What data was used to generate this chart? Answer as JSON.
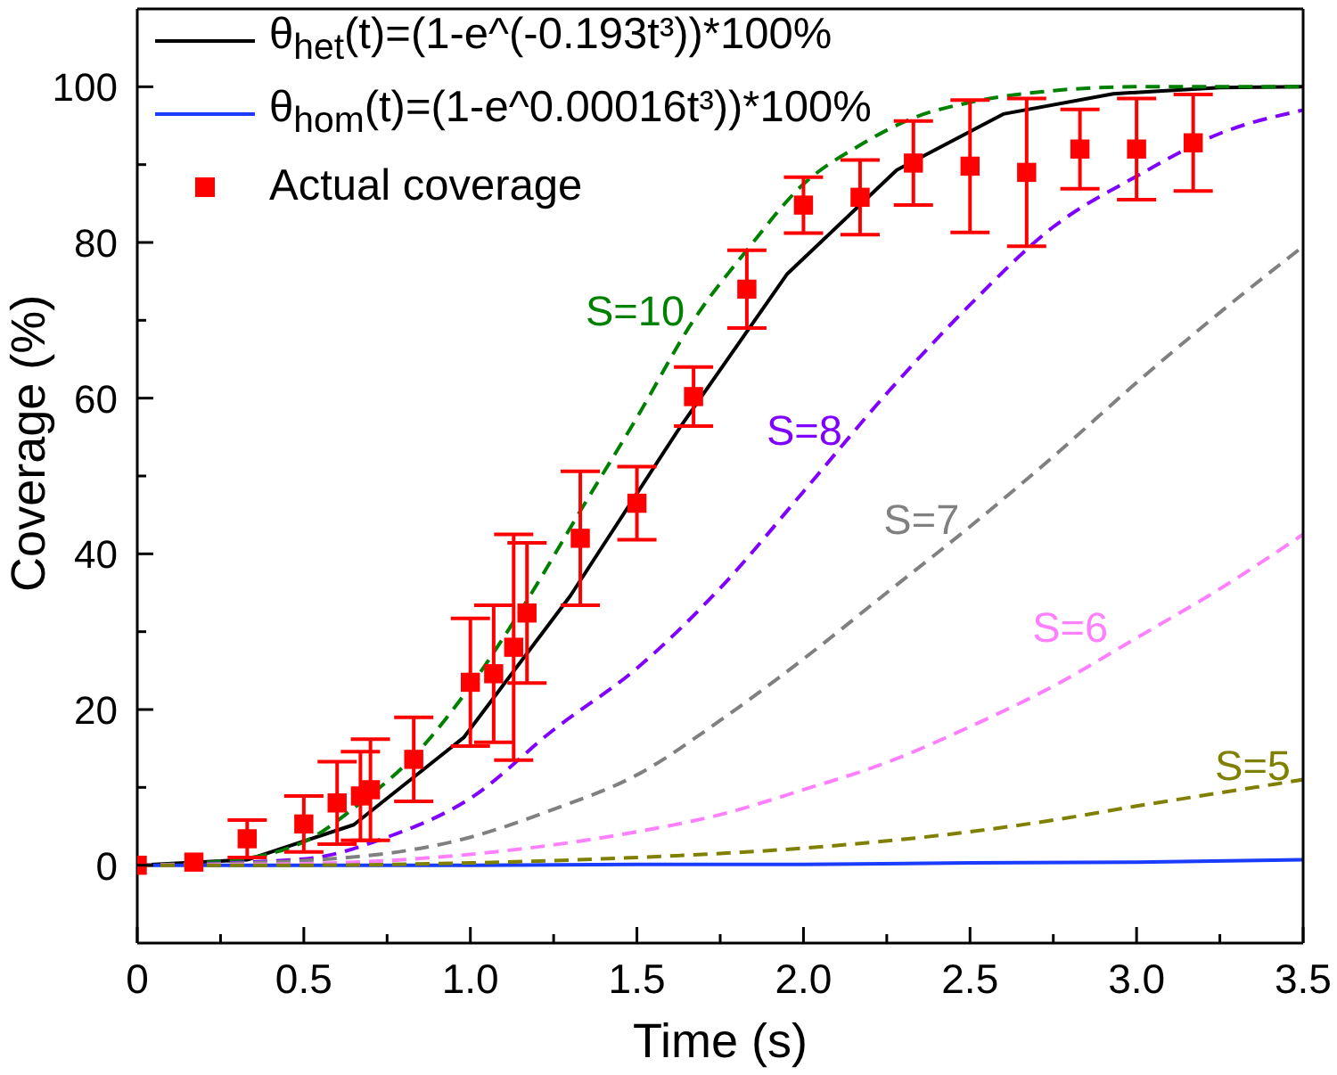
{
  "chart_data": {
    "type": "line",
    "xlabel": "Time (s)",
    "ylabel": "Coverage (%)",
    "xlim": [
      0,
      3.5
    ],
    "ylim": [
      -10,
      110
    ],
    "xticks": [
      0,
      {
        "value": 0.25,
        "label": null
      },
      0.5,
      {
        "value": 0.75,
        "label": null
      },
      {
        "value": 1,
        "label": "1.0"
      },
      {
        "value": 1.25,
        "label": null
      },
      1.5,
      {
        "value": 1.75,
        "label": null
      },
      {
        "value": 2,
        "label": "2.0"
      },
      {
        "value": 2.25,
        "label": null
      },
      2.5,
      {
        "value": 2.75,
        "label": null
      },
      {
        "value": 3,
        "label": "3.0"
      },
      {
        "value": 3.25,
        "label": null
      },
      3.5
    ],
    "yticks": [
      0,
      {
        "value": 10,
        "label": null
      },
      20,
      {
        "value": 30,
        "label": null
      },
      40,
      {
        "value": 50,
        "label": null
      },
      60,
      {
        "value": 70,
        "label": null
      },
      80,
      {
        "value": 90,
        "label": null
      },
      100
    ],
    "legend": "top left",
    "series": [
      {
        "name": "θ$_{het}$(t)=(1-e^(-0.193t³))*100%",
        "color": "#000000",
        "line_style": "solid",
        "x": [
          0,
          0.33,
          0.65,
          0.98,
          1.3,
          1.63,
          1.95,
          2.28,
          2.6,
          2.93,
          3.25,
          3.5
        ],
        "values": [
          0,
          0.7,
          5.2,
          16.4,
          34.6,
          56.3,
          75.9,
          89.3,
          96.5,
          99.1,
          99.9,
          100
        ]
      },
      {
        "name": "θ$_{hom}$(t)=(1-e^0.00016t³))*100%",
        "color": "#1a3cff",
        "line_style": "solid",
        "x": [
          0,
          0.5,
          1,
          1.5,
          2,
          2.5,
          3,
          3.5
        ],
        "values": [
          0,
          0,
          0,
          0.1,
          0.1,
          0.3,
          0.4,
          0.7
        ]
      },
      {
        "name": "S=10",
        "color": "#008000",
        "line_style": "dashed",
        "x": [
          0,
          0.25,
          0.5,
          0.67,
          0.83,
          1,
          1.17,
          1.33,
          1.5,
          1.67,
          1.83,
          2,
          2.17,
          2.33,
          2.5,
          2.75,
          3,
          3.25,
          3.5
        ],
        "values": [
          0,
          0.5,
          3,
          8,
          14,
          23,
          34,
          45.5,
          57.5,
          70,
          79,
          87.5,
          92.5,
          96,
          98,
          99.5,
          100,
          100,
          100
        ]
      },
      {
        "name": "S=8",
        "color": "#8000ff",
        "line_style": "dashed",
        "x": [
          0,
          0.5,
          0.75,
          1,
          1.25,
          1.5,
          1.75,
          2,
          2.25,
          2.5,
          2.75,
          3,
          3.25,
          3.5
        ],
        "values": [
          0,
          0.8,
          3.6,
          8.6,
          17.4,
          25.3,
          35.6,
          48,
          60.6,
          72,
          82,
          88.5,
          94,
          97
        ]
      },
      {
        "name": "S=7",
        "color": "#808080",
        "line_style": "dashed",
        "x": [
          0,
          0.5,
          1,
          1.25,
          1.5,
          1.75,
          2,
          2.25,
          2.5,
          2.75,
          3,
          3.25,
          3.5
        ],
        "values": [
          0,
          0.6,
          3.6,
          7.2,
          11.6,
          18.6,
          26.5,
          35,
          43.5,
          52.5,
          62,
          71,
          79.5
        ]
      },
      {
        "name": "S=6",
        "color": "#ff80ff",
        "line_style": "dashed",
        "x": [
          0,
          0.5,
          1,
          1.5,
          1.75,
          2,
          2.25,
          2.5,
          2.75,
          3,
          3.25,
          3.5
        ],
        "values": [
          0,
          0.2,
          1.4,
          4.3,
          6.5,
          9.7,
          13.2,
          17.8,
          23,
          29.2,
          35.5,
          42.5
        ]
      },
      {
        "name": "S=5",
        "color": "#808000",
        "line_style": "dashed",
        "x": [
          0,
          0.5,
          1,
          1.5,
          2,
          2.5,
          2.75,
          3,
          3.25,
          3.5
        ],
        "values": [
          0,
          0,
          0.3,
          1,
          2.2,
          4.3,
          5.8,
          7.6,
          9.3,
          11
        ]
      },
      {
        "type": "scatter",
        "name": "Actual coverage",
        "color": "#ff0000",
        "marker": "square",
        "x": [
          0,
          0.17,
          0.33,
          0.5,
          0.6,
          0.67,
          0.7,
          0.83,
          1,
          1.07,
          1.13,
          1.17,
          1.33,
          1.5,
          1.67,
          1.83,
          2,
          2.17,
          2.33,
          2.5,
          2.67,
          2.83,
          3,
          3.17
        ],
        "values": [
          0,
          0.4,
          3.4,
          5.3,
          8,
          8.9,
          9.7,
          13.6,
          23.5,
          24.6,
          28,
          32.4,
          42,
          46.5,
          60.2,
          74,
          84.8,
          85.8,
          90.2,
          89.8,
          89,
          92,
          92,
          92.8
        ],
        "errors": [
          null,
          null,
          2.4,
          3.6,
          5.3,
          5.7,
          6.5,
          5.4,
          8.2,
          8.8,
          14.5,
          9,
          8.6,
          4.7,
          3.8,
          5,
          3.6,
          4.8,
          5.4,
          8.5,
          9.5,
          5.1,
          6.5,
          6.2
        ]
      }
    ]
  }
}
